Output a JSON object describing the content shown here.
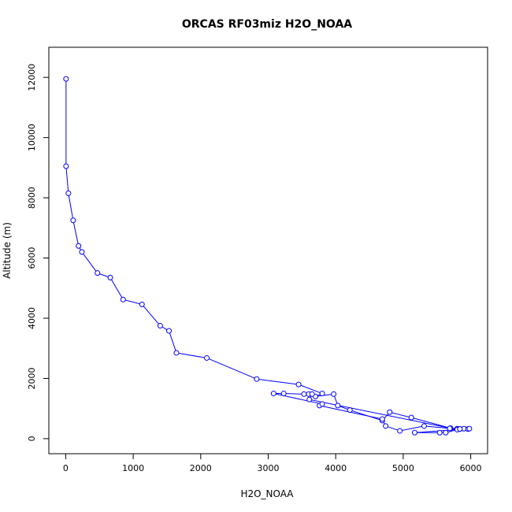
{
  "chart_data": {
    "type": "line",
    "title": "ORCAS RF03miz H2O_NOAA",
    "xlabel": "H2O_NOAA",
    "ylabel": "Altitude (m)",
    "xlim": [
      -250,
      6250
    ],
    "ylim": [
      -500,
      13000
    ],
    "xticks": [
      0,
      1000,
      2000,
      3000,
      4000,
      5000,
      6000
    ],
    "yticks": [
      0,
      2000,
      4000,
      6000,
      8000,
      10000,
      12000
    ],
    "grid": false,
    "colors": {
      "series": "#0000ff",
      "axes": "#000000"
    },
    "series": [
      {
        "marker": "open-circle",
        "points": [
          [
            5,
            11950
          ],
          [
            5,
            9050
          ],
          [
            40,
            8150
          ],
          [
            110,
            7250
          ],
          [
            190,
            6400
          ],
          [
            240,
            6200
          ],
          [
            470,
            5500
          ],
          [
            660,
            5350
          ],
          [
            850,
            4620
          ],
          [
            1130,
            4460
          ],
          [
            1400,
            3750
          ],
          [
            1530,
            3580
          ],
          [
            1640,
            2850
          ],
          [
            2090,
            2680
          ],
          [
            2830,
            1980
          ],
          [
            3450,
            1800
          ],
          [
            3800,
            1500
          ],
          [
            3700,
            1400
          ],
          [
            3970,
            1480
          ],
          [
            4030,
            1100
          ],
          [
            4210,
            950
          ],
          [
            4690,
            600
          ],
          [
            4800,
            880
          ],
          [
            5120,
            700
          ],
          [
            5700,
            350
          ],
          [
            5800,
            330
          ],
          [
            5840,
            320
          ],
          [
            5900,
            330
          ],
          [
            5960,
            320
          ],
          [
            5980,
            330
          ],
          [
            5820,
            320
          ],
          [
            5690,
            340
          ],
          [
            5310,
            420
          ],
          [
            4950,
            260
          ],
          [
            4740,
            420
          ],
          [
            4690,
            650
          ],
          [
            3760,
            1100
          ],
          [
            3800,
            1150
          ],
          [
            3080,
            1500
          ],
          [
            3230,
            1500
          ],
          [
            3530,
            1480
          ],
          [
            3600,
            1480
          ],
          [
            3650,
            1480
          ],
          [
            3610,
            1300
          ],
          [
            5800,
            300
          ],
          [
            5170,
            200
          ],
          [
            5540,
            200
          ],
          [
            5630,
            200
          ],
          [
            5840,
            320
          ]
        ]
      }
    ]
  }
}
